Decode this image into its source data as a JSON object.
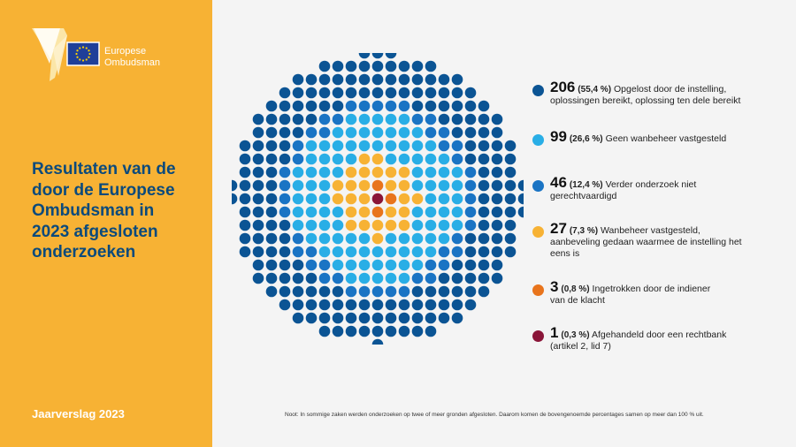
{
  "logo": {
    "line1": "Europese",
    "line2": "Ombudsman"
  },
  "title": {
    "line1": "Resultaten van de",
    "line2": "door de Europese",
    "line3": "Ombudsman in",
    "line4": "2023 afgesloten",
    "line5": "onderzoeken"
  },
  "report_label": "Jaarverslag 2023",
  "footnote": "Noot: In sommige zaken werden onderzoeken op twee of meer gronden afgesloten. Daarom komen de bovengenoemde percentages samen op meer dan 100 % uit.",
  "chart_data": {
    "type": "dot-matrix",
    "title": "Resultaten van de door de Europese Ombudsman in 2023 afgesloten onderzoeken",
    "categories": [
      "Opgelost door de instelling, oplossingen bereikt, oplossing ten dele bereikt",
      "Geen wanbeheer vastgesteld",
      "Verder onderzoek niet gerechtvaardigd",
      "Wanbeheer vastgesteld, aanbeveling gedaan waarmee de instelling het eens is",
      "Ingetrokken door de indiener van de klacht",
      "Afgehandeld door een rechtbank (artikel 2, lid 7)"
    ],
    "values": [
      206,
      99,
      46,
      27,
      3,
      1
    ],
    "percentages": [
      "55,4 %",
      "26,6 %",
      "12,4 %",
      "7,3 %",
      "0,8 %",
      "0,3 %"
    ],
    "colors": [
      "#0b5494",
      "#29aee6",
      "#1a74c4",
      "#f7b234",
      "#e8741c",
      "#8a1538"
    ]
  },
  "legend": [
    {
      "num": "206",
      "pct": "(55,4 %)",
      "line1": "Opgelost door de instelling,",
      "line2": "oplossingen bereikt, oplossing ten dele bereikt",
      "line3": ""
    },
    {
      "num": "99",
      "pct": "(26,6 %)",
      "line1": "Geen wanbeheer vastgesteld",
      "line2": "",
      "line3": ""
    },
    {
      "num": "46",
      "pct": "(12,4 %)",
      "line1": "Verder onderzoek niet",
      "line2": "gerechtvaardigd",
      "line3": ""
    },
    {
      "num": "27",
      "pct": "(7,3 %)",
      "line1": "Wanbeheer vastgesteld,",
      "line2": "aanbeveling gedaan waarmee de instelling het",
      "line3": "eens is"
    },
    {
      "num": "3",
      "pct": "(0,8 %)",
      "line1": "Ingetrokken door de indiener",
      "line2": "van de klacht",
      "line3": ""
    },
    {
      "num": "1",
      "pct": "(0,3 %)",
      "line1": "Afgehandeld door een rechtbank",
      "line2": "(artikel 2, lid 7)",
      "line3": ""
    }
  ]
}
